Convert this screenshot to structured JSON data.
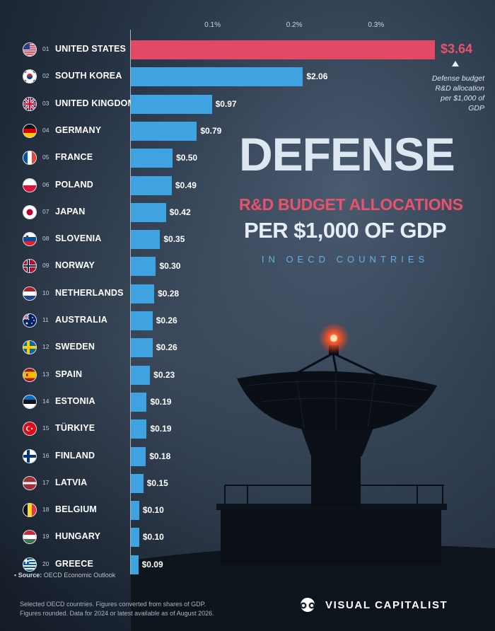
{
  "title": {
    "line1": "DEFENSE",
    "line2": "R&D BUDGET ALLOCATIONS",
    "line3": "PER $1,000 OF GDP",
    "line4": "IN OECD COUNTRIES"
  },
  "annotation": "Defense budget R&D allocation per $1,000 of GDP",
  "colors": {
    "highlight": "#e34964",
    "bar": "#3ea3e0",
    "subtitle_red": "#e8536b",
    "subtitle_blue": "#5fb3e6"
  },
  "footer": {
    "source_label": "Source:",
    "source_text": "OECD Economic Outlook",
    "note": "Selected OECD countries. Figures converted from shares of GDP. Figures rounded. Data for 2024 or latest available as of August 2026.",
    "brand": "VISUAL CAPITALIST"
  },
  "chart_data": {
    "type": "bar",
    "orientation": "horizontal",
    "top_axis_ticks": [
      "0.1%",
      "0.2%",
      "0.3%"
    ],
    "top_axis_values": [
      0.1,
      0.2,
      0.3
    ],
    "xlim": [
      0,
      0.372
    ],
    "categories": [
      "UNITED STATES",
      "SOUTH KOREA",
      "UNITED KINGDOM",
      "GERMANY",
      "FRANCE",
      "POLAND",
      "JAPAN",
      "SLOVENIA",
      "NORWAY",
      "NETHERLANDS",
      "AUSTRALIA",
      "SWEDEN",
      "SPAIN",
      "ESTONIA",
      "TÜRKIYE",
      "FINLAND",
      "LATVIA",
      "BELGIUM",
      "HUNGARY",
      "GREECE"
    ],
    "ranks": [
      "01",
      "02",
      "03",
      "04",
      "05",
      "06",
      "07",
      "08",
      "09",
      "10",
      "11",
      "12",
      "13",
      "14",
      "15",
      "16",
      "17",
      "18",
      "19",
      "20"
    ],
    "values": [
      3.64,
      2.06,
      0.97,
      0.79,
      0.5,
      0.49,
      0.42,
      0.35,
      0.3,
      0.28,
      0.26,
      0.26,
      0.23,
      0.19,
      0.19,
      0.18,
      0.15,
      0.1,
      0.1,
      0.09
    ],
    "value_labels": [
      "$3.64",
      "$2.06",
      "$0.97",
      "$0.79",
      "$0.50",
      "$0.49",
      "$0.42",
      "$0.35",
      "$0.30",
      "$0.28",
      "$0.26",
      "$0.26",
      "$0.23",
      "$0.19",
      "$0.19",
      "$0.18",
      "$0.15",
      "$0.10",
      "$0.10",
      "$0.09"
    ],
    "flags": [
      "us-flag-icon",
      "kr-flag-icon",
      "gb-flag-icon",
      "de-flag-icon",
      "fr-flag-icon",
      "pl-flag-icon",
      "jp-flag-icon",
      "si-flag-icon",
      "no-flag-icon",
      "nl-flag-icon",
      "au-flag-icon",
      "se-flag-icon",
      "es-flag-icon",
      "ee-flag-icon",
      "tr-flag-icon",
      "fi-flag-icon",
      "lv-flag-icon",
      "be-flag-icon",
      "hu-flag-icon",
      "gr-flag-icon"
    ]
  }
}
